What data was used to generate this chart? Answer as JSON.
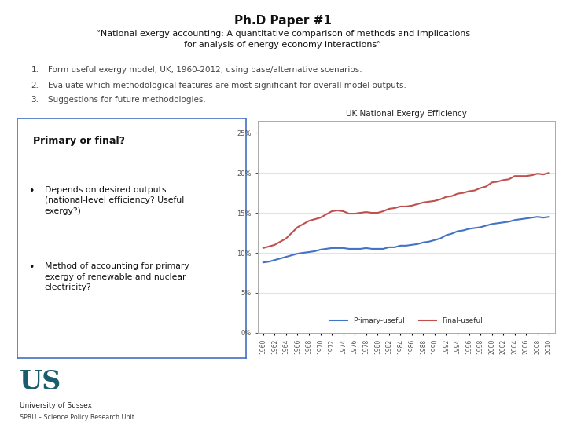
{
  "title": "Ph.D Paper #1",
  "subtitle": "“National exergy accounting: A quantitative comparison of methods and implications\nfor analysis of energy economy interactions”",
  "bullet_items": [
    "Form useful exergy model, UK, 1960-2012, using base/alternative scenarios.",
    "Evaluate which methodological features are most significant for overall model outputs.",
    "Suggestions for future methodologies."
  ],
  "left_box_title": "Primary or final?",
  "left_box_bullets": [
    "Depends on desired outputs\n(national-level efficiency? Useful\nexergy?)",
    "Method of accounting for primary\nexergy of renewable and nuclear\nelectricity?"
  ],
  "chart_title": "UK National Exergy Efficiency",
  "years": [
    1960,
    1961,
    1962,
    1963,
    1964,
    1965,
    1966,
    1967,
    1968,
    1969,
    1970,
    1971,
    1972,
    1973,
    1974,
    1975,
    1976,
    1977,
    1978,
    1979,
    1980,
    1981,
    1982,
    1983,
    1984,
    1985,
    1986,
    1987,
    1988,
    1989,
    1990,
    1991,
    1992,
    1993,
    1994,
    1995,
    1996,
    1997,
    1998,
    1999,
    2000,
    2001,
    2002,
    2003,
    2004,
    2005,
    2006,
    2007,
    2008,
    2009,
    2010
  ],
  "primary_useful": [
    0.088,
    0.089,
    0.091,
    0.093,
    0.095,
    0.097,
    0.099,
    0.1,
    0.101,
    0.102,
    0.104,
    0.105,
    0.106,
    0.106,
    0.106,
    0.105,
    0.105,
    0.105,
    0.106,
    0.105,
    0.105,
    0.105,
    0.107,
    0.107,
    0.109,
    0.109,
    0.11,
    0.111,
    0.113,
    0.114,
    0.116,
    0.118,
    0.122,
    0.124,
    0.127,
    0.128,
    0.13,
    0.131,
    0.132,
    0.134,
    0.136,
    0.137,
    0.138,
    0.139,
    0.141,
    0.142,
    0.143,
    0.144,
    0.145,
    0.144,
    0.145
  ],
  "final_useful": [
    0.106,
    0.108,
    0.11,
    0.114,
    0.118,
    0.125,
    0.132,
    0.136,
    0.14,
    0.142,
    0.144,
    0.148,
    0.152,
    0.153,
    0.152,
    0.149,
    0.149,
    0.15,
    0.151,
    0.15,
    0.15,
    0.152,
    0.155,
    0.156,
    0.158,
    0.158,
    0.159,
    0.161,
    0.163,
    0.164,
    0.165,
    0.167,
    0.17,
    0.171,
    0.174,
    0.175,
    0.177,
    0.178,
    0.181,
    0.183,
    0.188,
    0.189,
    0.191,
    0.192,
    0.196,
    0.196,
    0.196,
    0.197,
    0.199,
    0.198,
    0.2
  ],
  "primary_color": "#4472C4",
  "final_color": "#C0504D",
  "bg_color": "#FFFFFF",
  "chart_bg": "#FFFFFF",
  "box_border_color": "#4472C4",
  "university_logo_color": "#1B5E6B",
  "university_name": "University of Sussex",
  "university_subtitle": "SPRU – Science Policy Research Unit"
}
